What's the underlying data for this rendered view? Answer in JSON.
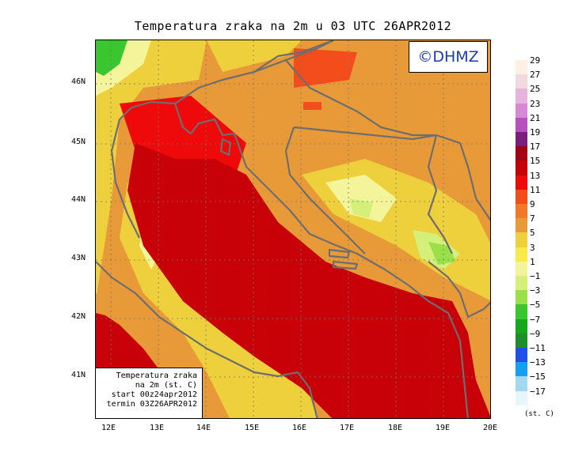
{
  "title": "Temperatura zraka na 2m u 03 UTC 26APR2012",
  "logo_text": "©DHMZ",
  "info_box": {
    "line1": "Temperatura zraka",
    "line2": "na 2m (st. C)",
    "line3": "start 00z24apr2012",
    "line4": "termin 03Z26APR2012"
  },
  "lat_labels": [
    "46N",
    "45N",
    "44N",
    "43N",
    "42N",
    "41N"
  ],
  "lon_labels": [
    "12E",
    "13E",
    "14E",
    "15E",
    "16E",
    "17E",
    "18E",
    "19E",
    "20E"
  ],
  "legend": {
    "unit": "(st. C)",
    "labels": [
      "29",
      "27",
      "25",
      "23",
      "21",
      "19",
      "17",
      "15",
      "13",
      "11",
      "9",
      "7",
      "5",
      "3",
      "1",
      "−1",
      "−3",
      "−5",
      "−7",
      "−9",
      "−11",
      "−13",
      "−15",
      "−17"
    ],
    "colors": [
      "#fdf0e4",
      "#f2d9e0",
      "#e7b4dd",
      "#d889d6",
      "#b651be",
      "#7a1e7e",
      "#a30015",
      "#c80008",
      "#ee0a0a",
      "#f24d1a",
      "#f07a2a",
      "#e89a38",
      "#eecf3c",
      "#f7ea4a",
      "#f4f59a",
      "#d5f07a",
      "#9ae048",
      "#3ac62e",
      "#14a81c",
      "#1e8f28",
      "#2050e6",
      "#189ef0",
      "#a2d9f0",
      "#e6f6fb"
    ]
  },
  "map": {
    "colors": {
      "sea_warm": "#c80008",
      "sea_coastal": "#ee0a0a",
      "land_very_warm": "#f24d1a",
      "land_warm": "#e89a38",
      "land_mild": "#eecf3c",
      "land_cool": "#f4f59a",
      "land_cold": "#d5f07a",
      "land_colder": "#9ae048",
      "alps_green": "#3ac62e",
      "borders": "#6e6e6e"
    }
  }
}
